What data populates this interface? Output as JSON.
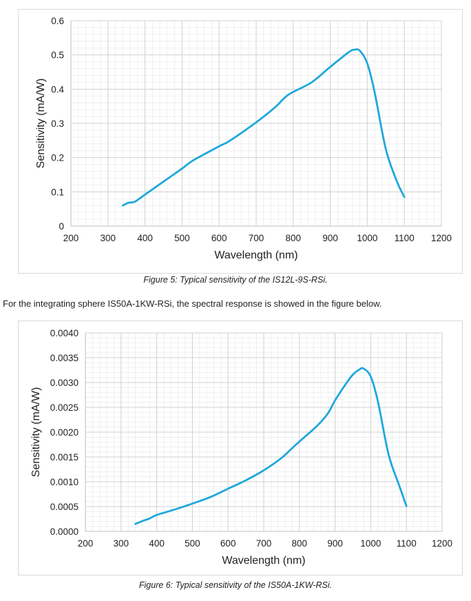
{
  "figure1": {
    "caption": "Figure 5: Typical sensitivity of the IS12L-9S-RSi."
  },
  "body_text": "For the integrating sphere IS50A-1KW-RSi, the spectral response is showed in the figure below.",
  "figure2": {
    "caption": "Figure 6: Typical sensitivity of the IS50A-1KW-RSi."
  },
  "colors": {
    "line": "#1ea8dc",
    "major_grid": "#d0d0d0",
    "minor_grid": "#ececec",
    "axis": "#bfbfbf"
  },
  "chart_data": [
    {
      "type": "line",
      "title": "",
      "xlabel": "Wavelength (nm)",
      "ylabel": "Sensitivity (mA/W)",
      "xlim": [
        200,
        1200
      ],
      "ylim": [
        0,
        0.6
      ],
      "x_ticks": [
        "200",
        "300",
        "400",
        "500",
        "600",
        "700",
        "800",
        "900",
        "1000",
        "1100",
        "1200"
      ],
      "y_ticks": [
        "0",
        "0.1",
        "0.2",
        "0.3",
        "0.4",
        "0.5",
        "0.6"
      ],
      "grid": true,
      "series": [
        {
          "name": "IS12L-9S-RSi",
          "x": [
            340,
            355,
            370,
            385,
            400,
            450,
            500,
            530,
            600,
            630,
            700,
            750,
            780,
            800,
            850,
            900,
            950,
            965,
            980,
            1000,
            1020,
            1050,
            1080,
            1100
          ],
          "y": [
            0.06,
            0.068,
            0.07,
            0.08,
            0.092,
            0.13,
            0.168,
            0.192,
            0.233,
            0.25,
            0.303,
            0.346,
            0.378,
            0.392,
            0.42,
            0.465,
            0.508,
            0.515,
            0.512,
            0.475,
            0.39,
            0.225,
            0.13,
            0.085
          ]
        }
      ]
    },
    {
      "type": "line",
      "title": "",
      "xlabel": "Wavelength (nm)",
      "ylabel": "Sensitivity (mA/W)",
      "xlim": [
        200,
        1200
      ],
      "ylim": [
        0,
        0.004
      ],
      "x_ticks": [
        "200",
        "300",
        "400",
        "500",
        "600",
        "700",
        "800",
        "900",
        "1000",
        "1100",
        "1200"
      ],
      "y_ticks": [
        "0.0000",
        "0.0005",
        "0.0010",
        "0.0015",
        "0.0020",
        "0.0025",
        "0.0030",
        "0.0035",
        "0.0040"
      ],
      "grid": true,
      "series": [
        {
          "name": "IS50A-1KW-RSi",
          "x": [
            340,
            360,
            380,
            400,
            450,
            500,
            550,
            600,
            650,
            700,
            750,
            780,
            800,
            850,
            880,
            900,
            930,
            950,
            970,
            980,
            1000,
            1020,
            1050,
            1080,
            1100
          ],
          "y": [
            0.00015,
            0.00021,
            0.00026,
            0.00033,
            0.00044,
            0.00056,
            0.00069,
            0.00086,
            0.00103,
            0.00123,
            0.00148,
            0.00168,
            0.00181,
            0.00213,
            0.00238,
            0.00264,
            0.00297,
            0.00316,
            0.00327,
            0.00328,
            0.00312,
            0.00262,
            0.00155,
            0.00092,
            0.00051
          ]
        }
      ]
    }
  ]
}
